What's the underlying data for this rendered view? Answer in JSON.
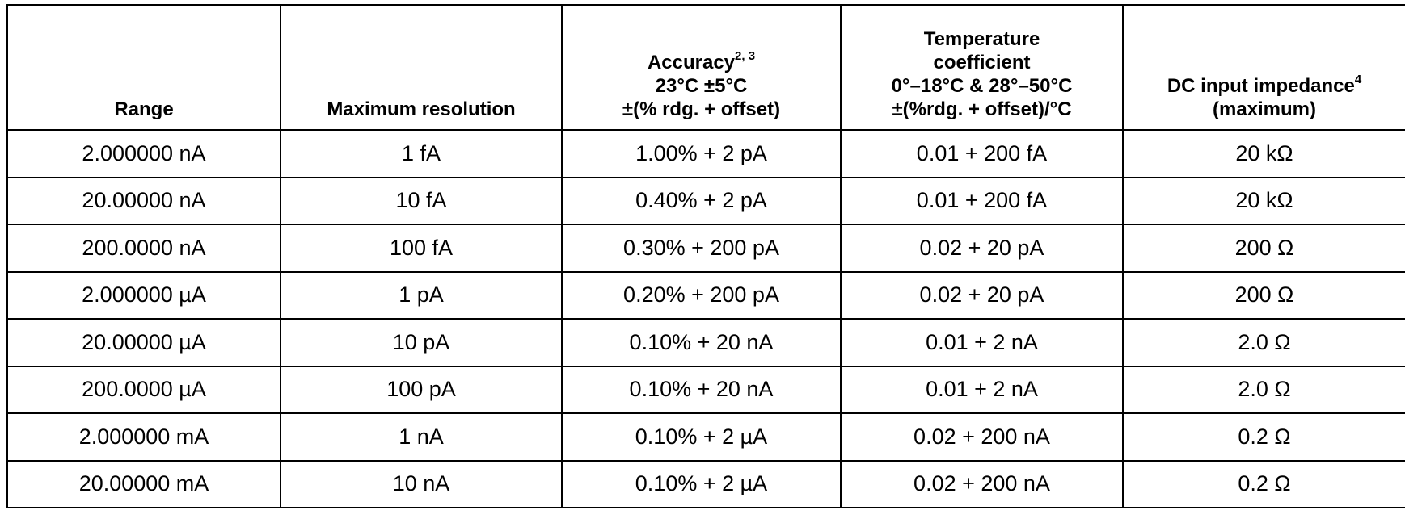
{
  "table": {
    "headers": {
      "range": "Range",
      "max_resolution": "Maximum resolution",
      "accuracy_title": "Accuracy",
      "accuracy_sup": "2, 3",
      "accuracy_line2": "23°C ±5°C",
      "accuracy_line3": "±(% rdg. + offset)",
      "tempco_line1": "Temperature",
      "tempco_line2": "coefficient",
      "tempco_line3": "0°–18°C & 28°–50°C",
      "tempco_line4": "±(%rdg. + offset)/°C",
      "impedance_title": "DC input impedance",
      "impedance_sup": "4",
      "impedance_line2": "(maximum)"
    },
    "rows": [
      {
        "range": "2.000000 nA",
        "resolution": "1 fA",
        "accuracy": "1.00% + 2 pA",
        "tempco": "0.01 + 200 fA",
        "impedance": "20 kΩ"
      },
      {
        "range": "20.00000 nA",
        "resolution": "10 fA",
        "accuracy": "0.40% + 2 pA",
        "tempco": "0.01 + 200 fA",
        "impedance": "20 kΩ"
      },
      {
        "range": "200.0000 nA",
        "resolution": "100 fA",
        "accuracy": "0.30% + 200 pA",
        "tempco": "0.02 + 20 pA",
        "impedance": "200 Ω"
      },
      {
        "range": "2.000000 µA",
        "resolution": "1 pA",
        "accuracy": "0.20% + 200 pA",
        "tempco": "0.02 + 20 pA",
        "impedance": "200 Ω"
      },
      {
        "range": "20.00000 µA",
        "resolution": "10 pA",
        "accuracy": "0.10% + 20 nA",
        "tempco": "0.01 + 2 nA",
        "impedance": "2.0 Ω"
      },
      {
        "range": "200.0000 µA",
        "resolution": "100 pA",
        "accuracy": "0.10% + 20 nA",
        "tempco": "0.01 + 2 nA",
        "impedance": "2.0 Ω"
      },
      {
        "range": "2.000000 mA",
        "resolution": "1 nA",
        "accuracy": "0.10% + 2 µA",
        "tempco": "0.02 + 200 nA",
        "impedance": "0.2 Ω"
      },
      {
        "range": "20.00000 mA",
        "resolution": "10 nA",
        "accuracy": "0.10% + 2 µA",
        "tempco": "0.02 + 200 nA",
        "impedance": "0.2 Ω"
      }
    ]
  }
}
